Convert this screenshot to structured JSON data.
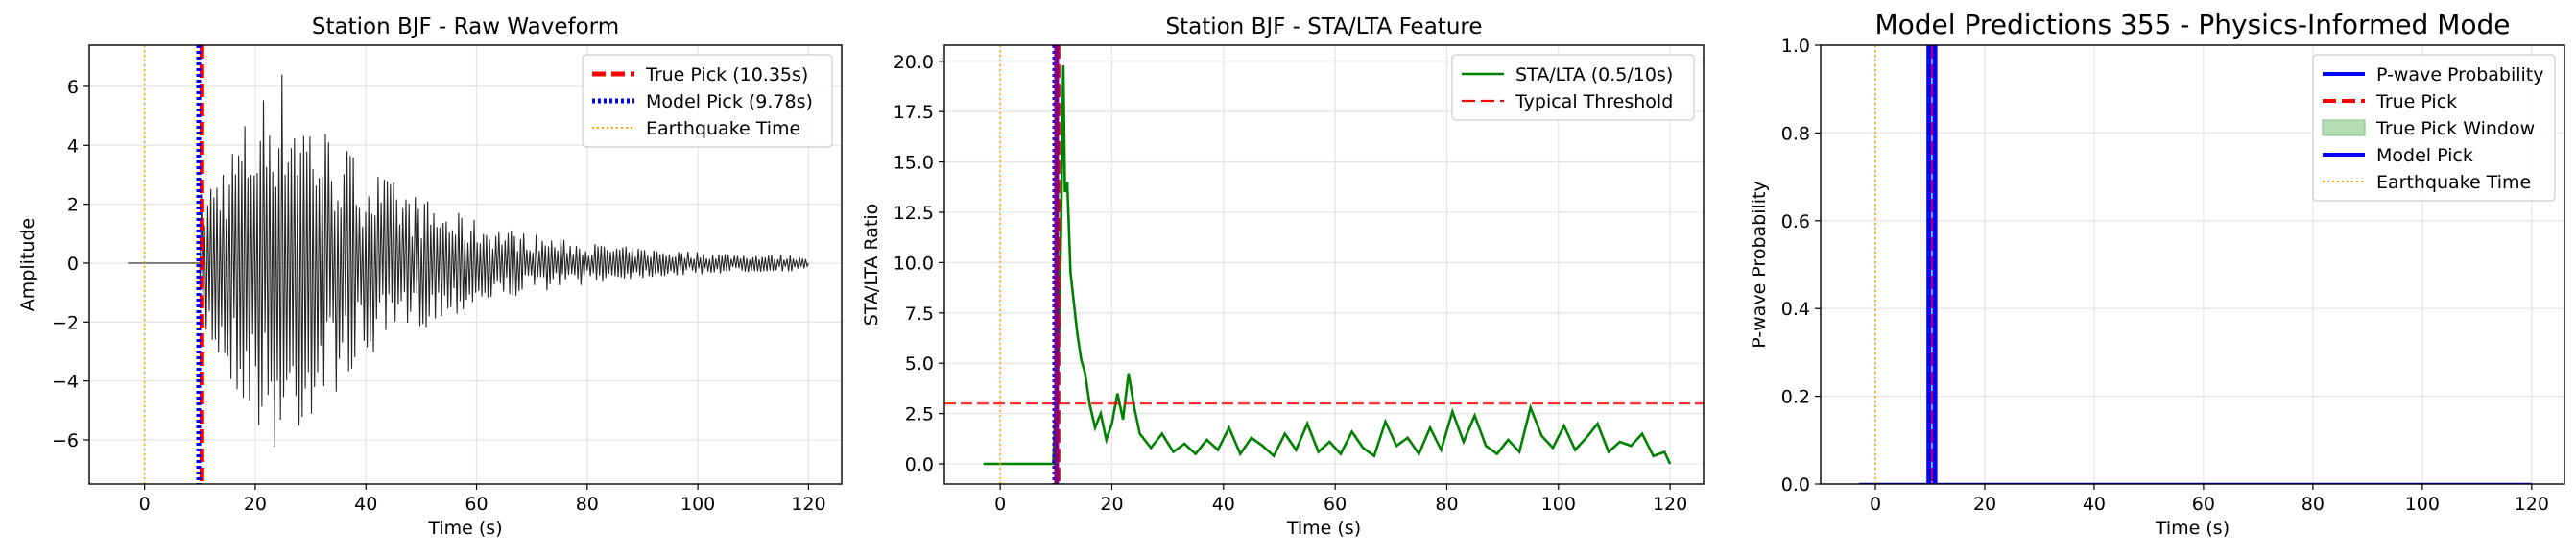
{
  "chart_data": [
    {
      "type": "line",
      "title": "Station BJF - Raw Waveform",
      "xlabel": "Time (s)",
      "ylabel": "Amplitude",
      "xlim": [
        -10,
        126
      ],
      "ylim": [
        -7.5,
        7.4
      ],
      "xticks": [
        0,
        20,
        40,
        60,
        80,
        100,
        120
      ],
      "yticks": [
        -6,
        -4,
        -2,
        0,
        2,
        4,
        6
      ],
      "grid": true,
      "legend_position": "top-right",
      "waveform": {
        "t_start": -3,
        "t_end": 120,
        "onset": 10.0,
        "peak_amplitude": 6.8,
        "decay_time": 22.0
      },
      "vlines": [
        {
          "name": "True Pick (10.35s)",
          "x": 10.35,
          "color": "#ff0000",
          "style": "dashed"
        },
        {
          "name": "Model Pick (9.78s)",
          "x": 9.78,
          "color": "#0000ff",
          "style": "dotted"
        },
        {
          "name": "Earthquake Time",
          "x": 0,
          "color": "#ffa500",
          "style": "dotted-thin"
        }
      ],
      "legend": [
        "True Pick (10.35s)",
        "Model Pick (9.78s)",
        "Earthquake Time"
      ]
    },
    {
      "type": "line",
      "title": "Station BJF - STA/LTA Feature",
      "xlabel": "Time (s)",
      "ylabel": "STA/LTA Ratio",
      "xlim": [
        -10,
        126
      ],
      "ylim": [
        -1.0,
        20.8
      ],
      "xticks": [
        0,
        20,
        40,
        60,
        80,
        100,
        120
      ],
      "yticks": [
        0.0,
        2.5,
        5.0,
        7.5,
        10.0,
        12.5,
        15.0,
        17.5,
        20.0
      ],
      "grid": true,
      "legend_position": "top-right",
      "series": [
        {
          "name": "STA/LTA (0.5/10s)",
          "color": "#008000",
          "x": [
            -3,
            9.5,
            10,
            10.2,
            10.35,
            10.6,
            10.9,
            11.3,
            11.6,
            12,
            12.6,
            13.2,
            13.8,
            14.5,
            15.2,
            16,
            17,
            18,
            19,
            20,
            21,
            22,
            23,
            24,
            25,
            27,
            29,
            31,
            33,
            35,
            37,
            39,
            41,
            43,
            45,
            47,
            49,
            51,
            53,
            55,
            57,
            59,
            61,
            63,
            65,
            67,
            69,
            71,
            73,
            75,
            77,
            79,
            81,
            83,
            85,
            87,
            89,
            91,
            93,
            95,
            97,
            99,
            101,
            103,
            105,
            107,
            109,
            111,
            113,
            115,
            117,
            119,
            120
          ],
          "values": [
            0.0,
            0.0,
            3.5,
            5.2,
            4.5,
            7.0,
            12.0,
            19.8,
            13.5,
            14.0,
            9.5,
            8.0,
            6.5,
            5.2,
            4.5,
            3.0,
            1.8,
            2.5,
            1.2,
            2.0,
            3.5,
            2.2,
            4.5,
            2.8,
            1.5,
            0.8,
            1.5,
            0.6,
            1.0,
            0.5,
            1.2,
            0.7,
            1.8,
            0.5,
            1.3,
            0.9,
            0.4,
            1.5,
            0.7,
            2.0,
            0.6,
            1.1,
            0.5,
            1.6,
            0.8,
            0.4,
            2.1,
            0.9,
            1.3,
            0.5,
            1.8,
            0.7,
            2.6,
            1.1,
            2.4,
            0.9,
            0.5,
            1.2,
            0.6,
            2.8,
            1.4,
            0.8,
            1.9,
            0.7,
            1.3,
            2.0,
            0.6,
            1.1,
            0.9,
            1.5,
            0.4,
            0.6,
            0.0
          ]
        }
      ],
      "hlines": [
        {
          "name": "Typical Threshold",
          "y": 3.0,
          "color": "#ff0000",
          "style": "dashed"
        }
      ],
      "vlines": [
        {
          "x": 10.35,
          "color": "#ff0000",
          "style": "dashed"
        },
        {
          "x": 9.78,
          "color": "#0000ff",
          "style": "dotted"
        },
        {
          "x": 10.1,
          "color": "#800080",
          "style": "solid"
        },
        {
          "x": 0,
          "color": "#ffa500",
          "style": "dotted-thin"
        }
      ],
      "legend": [
        "STA/LTA (0.5/10s)",
        "Typical Threshold"
      ]
    },
    {
      "type": "line",
      "title": "Model Predictions 355 - Physics-Informed Mode",
      "xlabel": "Time (s)",
      "ylabel": "P-wave Probability",
      "xlim": [
        -10,
        126
      ],
      "ylim": [
        0.0,
        1.0
      ],
      "xticks": [
        0,
        20,
        40,
        60,
        80,
        100,
        120
      ],
      "yticks": [
        0.0,
        0.2,
        0.4,
        0.6,
        0.8,
        1.0
      ],
      "grid": true,
      "legend_position": "top-right",
      "series": [
        {
          "name": "P-wave Probability",
          "color": "#0000ff",
          "x": [
            -3,
            120
          ],
          "values": [
            0.0,
            0.0
          ]
        }
      ],
      "true_pick_window": {
        "x0": 9.6,
        "x1": 11.1,
        "color": "#b5dcb5"
      },
      "vlines": [
        {
          "name": "True Pick",
          "x": 10.35,
          "color": "#ff0000",
          "style": "dashed"
        },
        {
          "name": "Model Pick",
          "x": 9.78,
          "color": "#0000ff",
          "style": "solid"
        },
        {
          "x": 10.9,
          "color": "#0000ff",
          "style": "solid"
        },
        {
          "name": "Earthquake Time",
          "x": 0,
          "color": "#ffa500",
          "style": "dotted-thin"
        }
      ],
      "legend": [
        "P-wave Probability",
        "True Pick",
        "True Pick Window",
        "Model Pick",
        "Earthquake Time"
      ]
    }
  ]
}
